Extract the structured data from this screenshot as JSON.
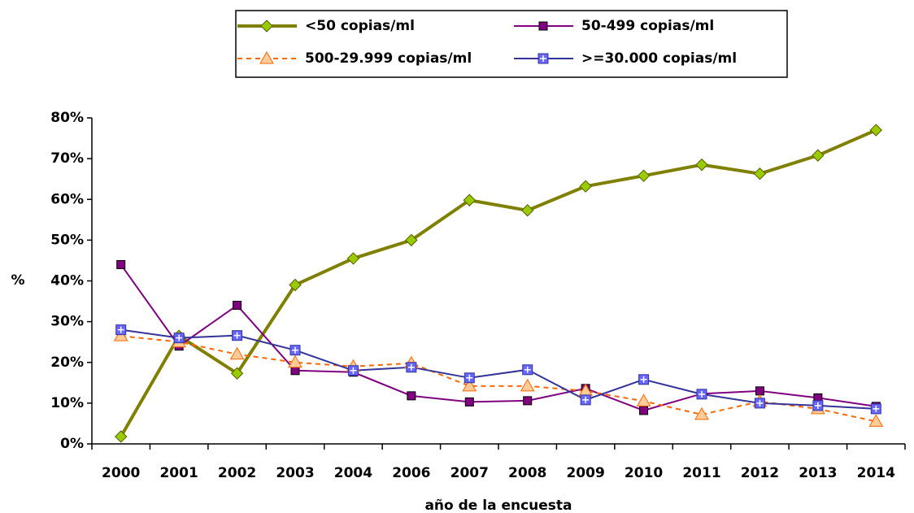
{
  "chart_data": {
    "type": "line",
    "x_label": "año de la encuesta",
    "y_label": "%",
    "categories": [
      "2000",
      "2001",
      "2002",
      "2003",
      "2004",
      "2006",
      "2007",
      "2008",
      "2009",
      "2010",
      "2011",
      "2012",
      "2013",
      "2014"
    ],
    "series": [
      {
        "name": "<50 copias/ml",
        "color": "#808000",
        "marker": "diamond",
        "marker_color": "#99cc00",
        "line_width": 4,
        "dashed": false,
        "values": [
          1.8,
          26.5,
          17.3,
          39,
          45.5,
          50,
          59.8,
          57.3,
          63.2,
          65.8,
          68.5,
          66.3,
          70.8,
          77
        ]
      },
      {
        "name": "50-499 copias/ml",
        "color": "#800080",
        "marker": "square",
        "marker_color": "#800080",
        "line_width": 2,
        "dashed": false,
        "values": [
          44,
          24,
          34,
          18,
          17.6,
          11.8,
          10.3,
          10.6,
          13.6,
          8.2,
          12.3,
          13,
          11.3,
          9.2
        ]
      },
      {
        "name": "500-29.999 copias/ml",
        "color": "#ff6600",
        "marker": "triangle",
        "marker_color": "#ffcc99",
        "line_width": 2,
        "dashed": true,
        "values": [
          26.5,
          25,
          22,
          20,
          19,
          19.8,
          14.2,
          14.2,
          13,
          10.5,
          7.2,
          10.4,
          8.6,
          5.5
        ]
      },
      {
        "name": ">=30.000 copias/ml",
        "color": "#333399",
        "marker": "cross-square",
        "marker_color": "#6666ff",
        "line_width": 2,
        "dashed": false,
        "values": [
          28,
          26,
          26.6,
          23,
          18,
          18.8,
          16.2,
          18.2,
          10.8,
          15.8,
          12.2,
          10,
          9.4,
          8.6
        ]
      }
    ],
    "ylim": [
      0,
      80
    ],
    "yticks": [
      {
        "value": 0,
        "label": "0%"
      },
      {
        "value": 10,
        "label": "10%"
      },
      {
        "value": 20,
        "label": "20%"
      },
      {
        "value": 30,
        "label": "30%"
      },
      {
        "value": 40,
        "label": "40%"
      },
      {
        "value": 50,
        "label": "50%"
      },
      {
        "value": 60,
        "label": "60%"
      },
      {
        "value": 70,
        "label": "70%"
      },
      {
        "value": 80,
        "label": "80%"
      }
    ],
    "grid": false,
    "legend": "top"
  }
}
